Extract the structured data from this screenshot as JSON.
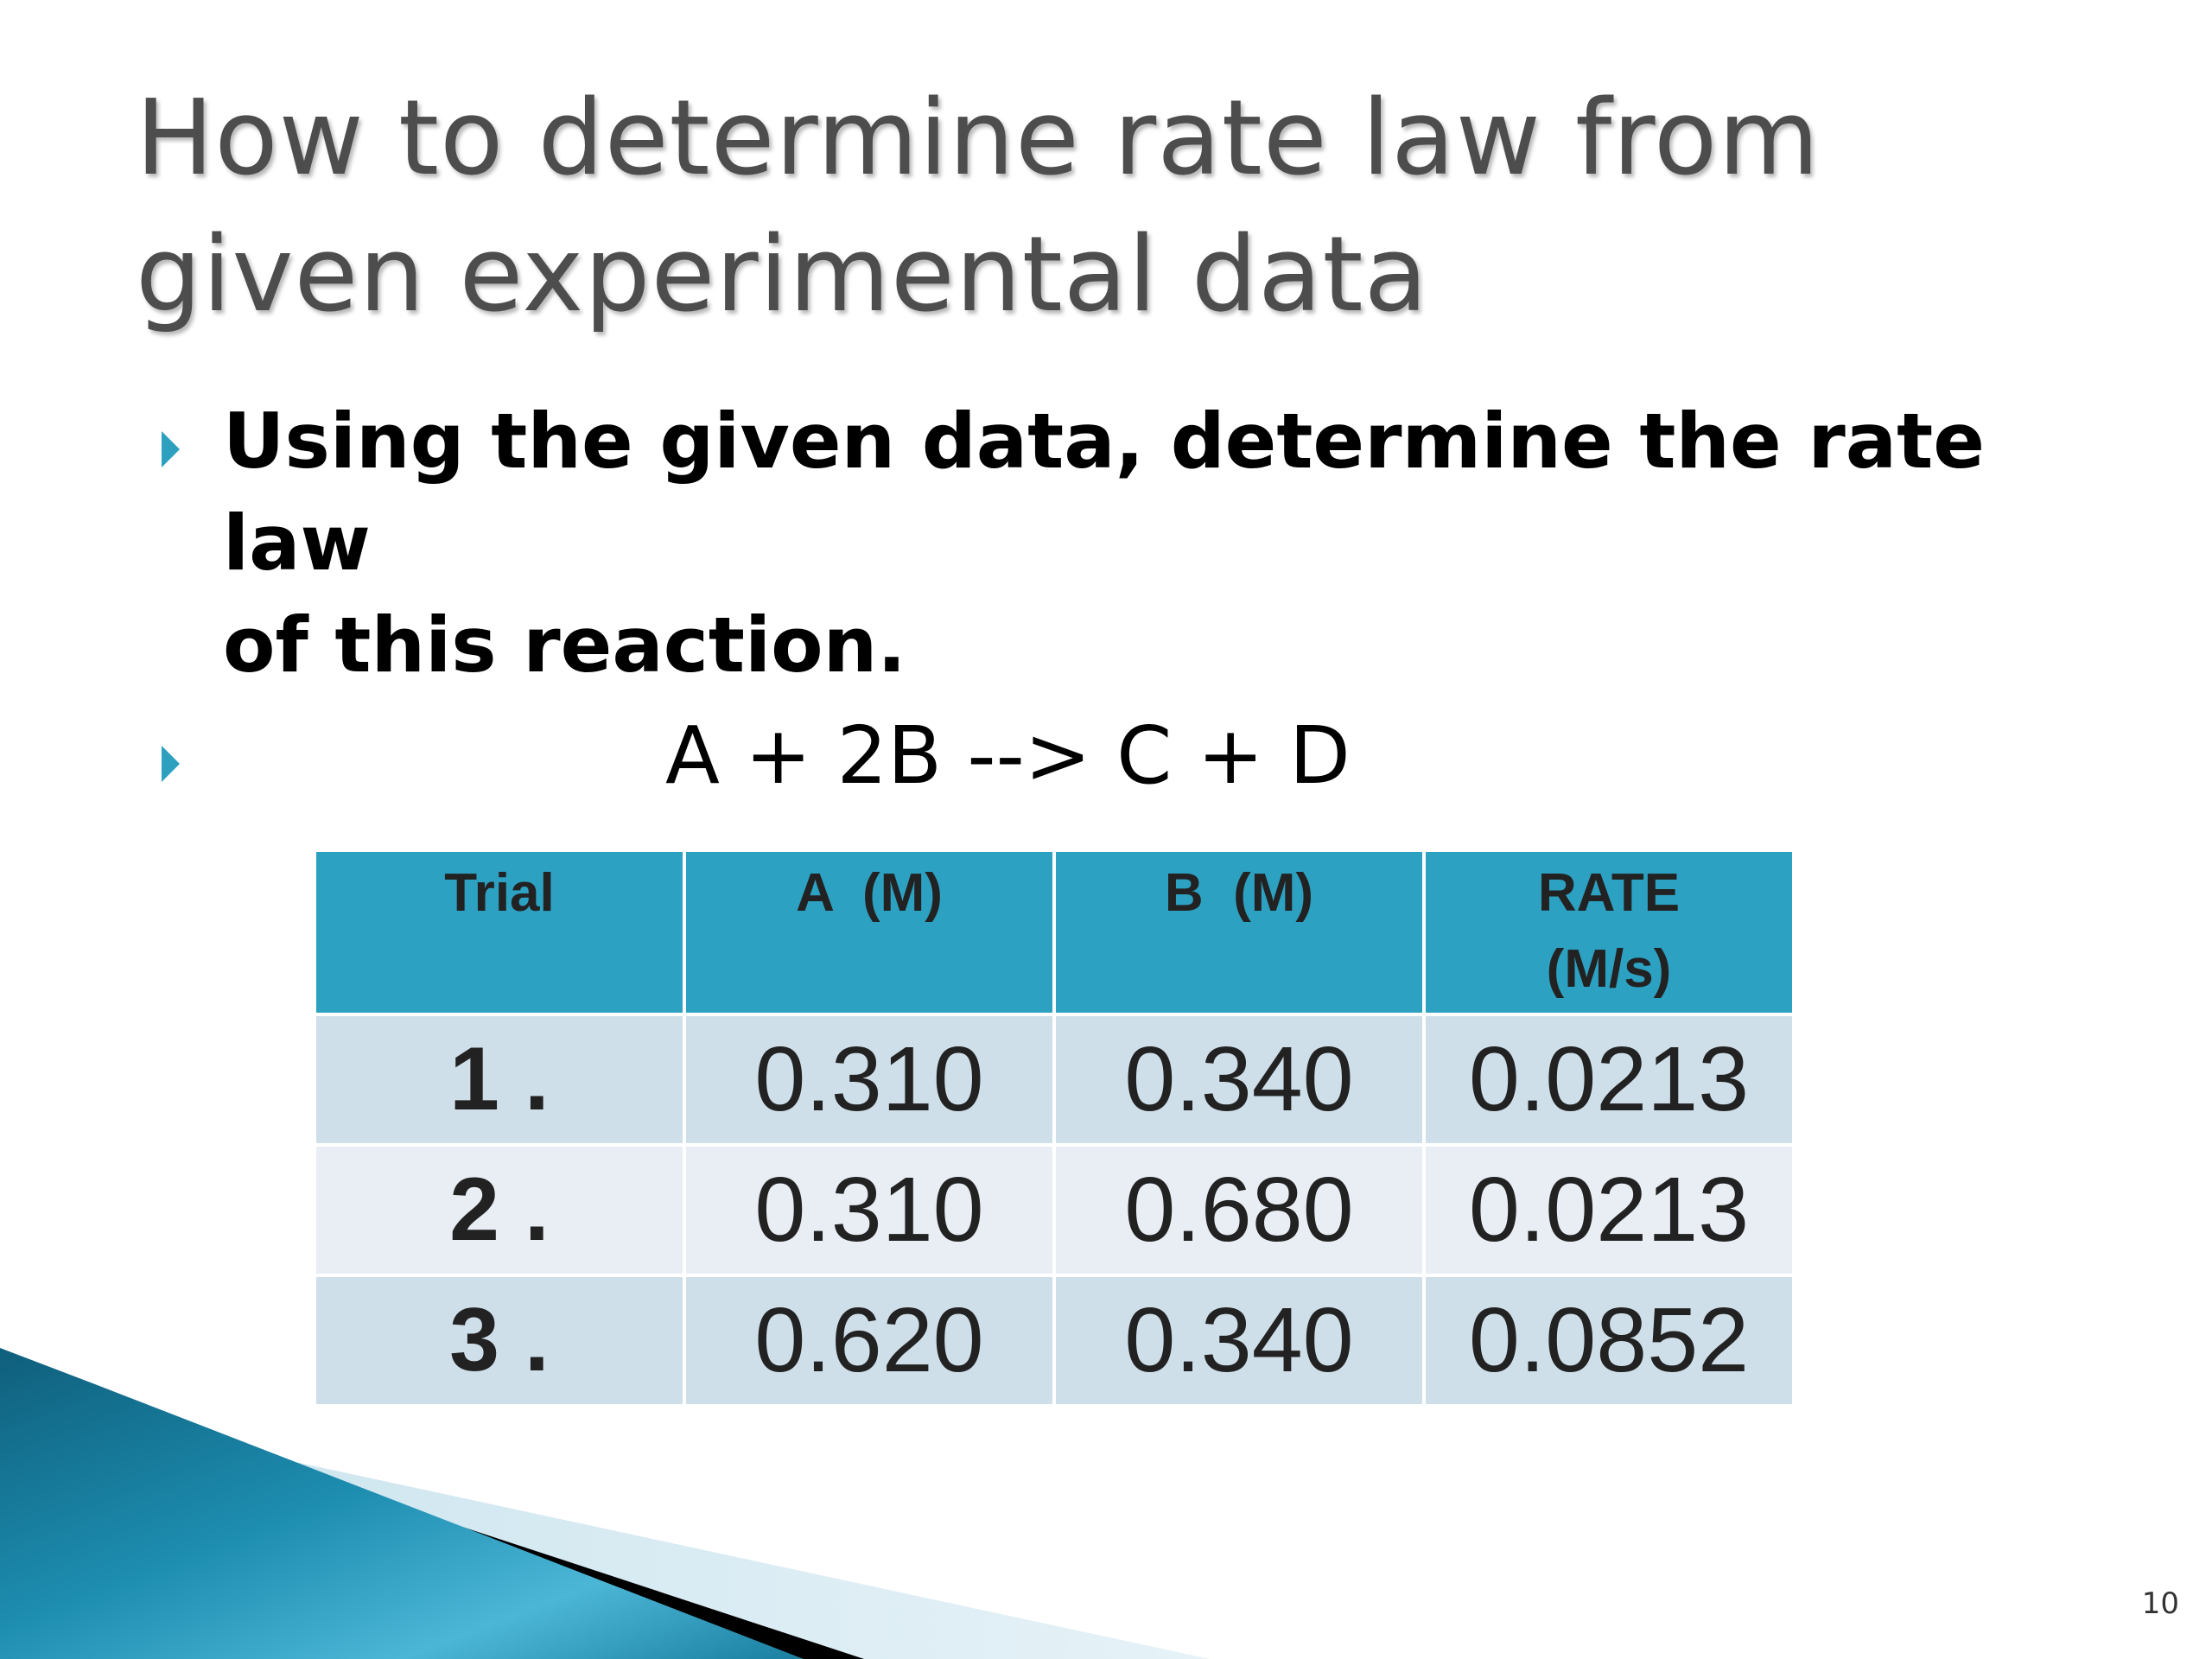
{
  "slide": {
    "title_line_1": "How to determine rate law from",
    "title_line_2": "given experimental data",
    "bullets": [
      {
        "text_line_1": "Using the given data, determine the rate law",
        "text_line_2": "of this reaction."
      },
      {
        "text": "A + 2B --> C + D"
      }
    ],
    "bullet_icon": "triangle-right-icon",
    "accent_color": "#2ca1c2",
    "page_number": "10"
  },
  "table": {
    "headers": [
      "Trial",
      "A  (M)",
      "B  (M)",
      "RATE (M/s)"
    ],
    "rows": [
      [
        "1 .",
        "0.310",
        "0.340",
        "0.0213"
      ],
      [
        "2 .",
        "0.310",
        "0.680",
        "0.0213"
      ],
      [
        "3 .",
        "0.620",
        "0.340",
        "0.0852"
      ]
    ]
  }
}
